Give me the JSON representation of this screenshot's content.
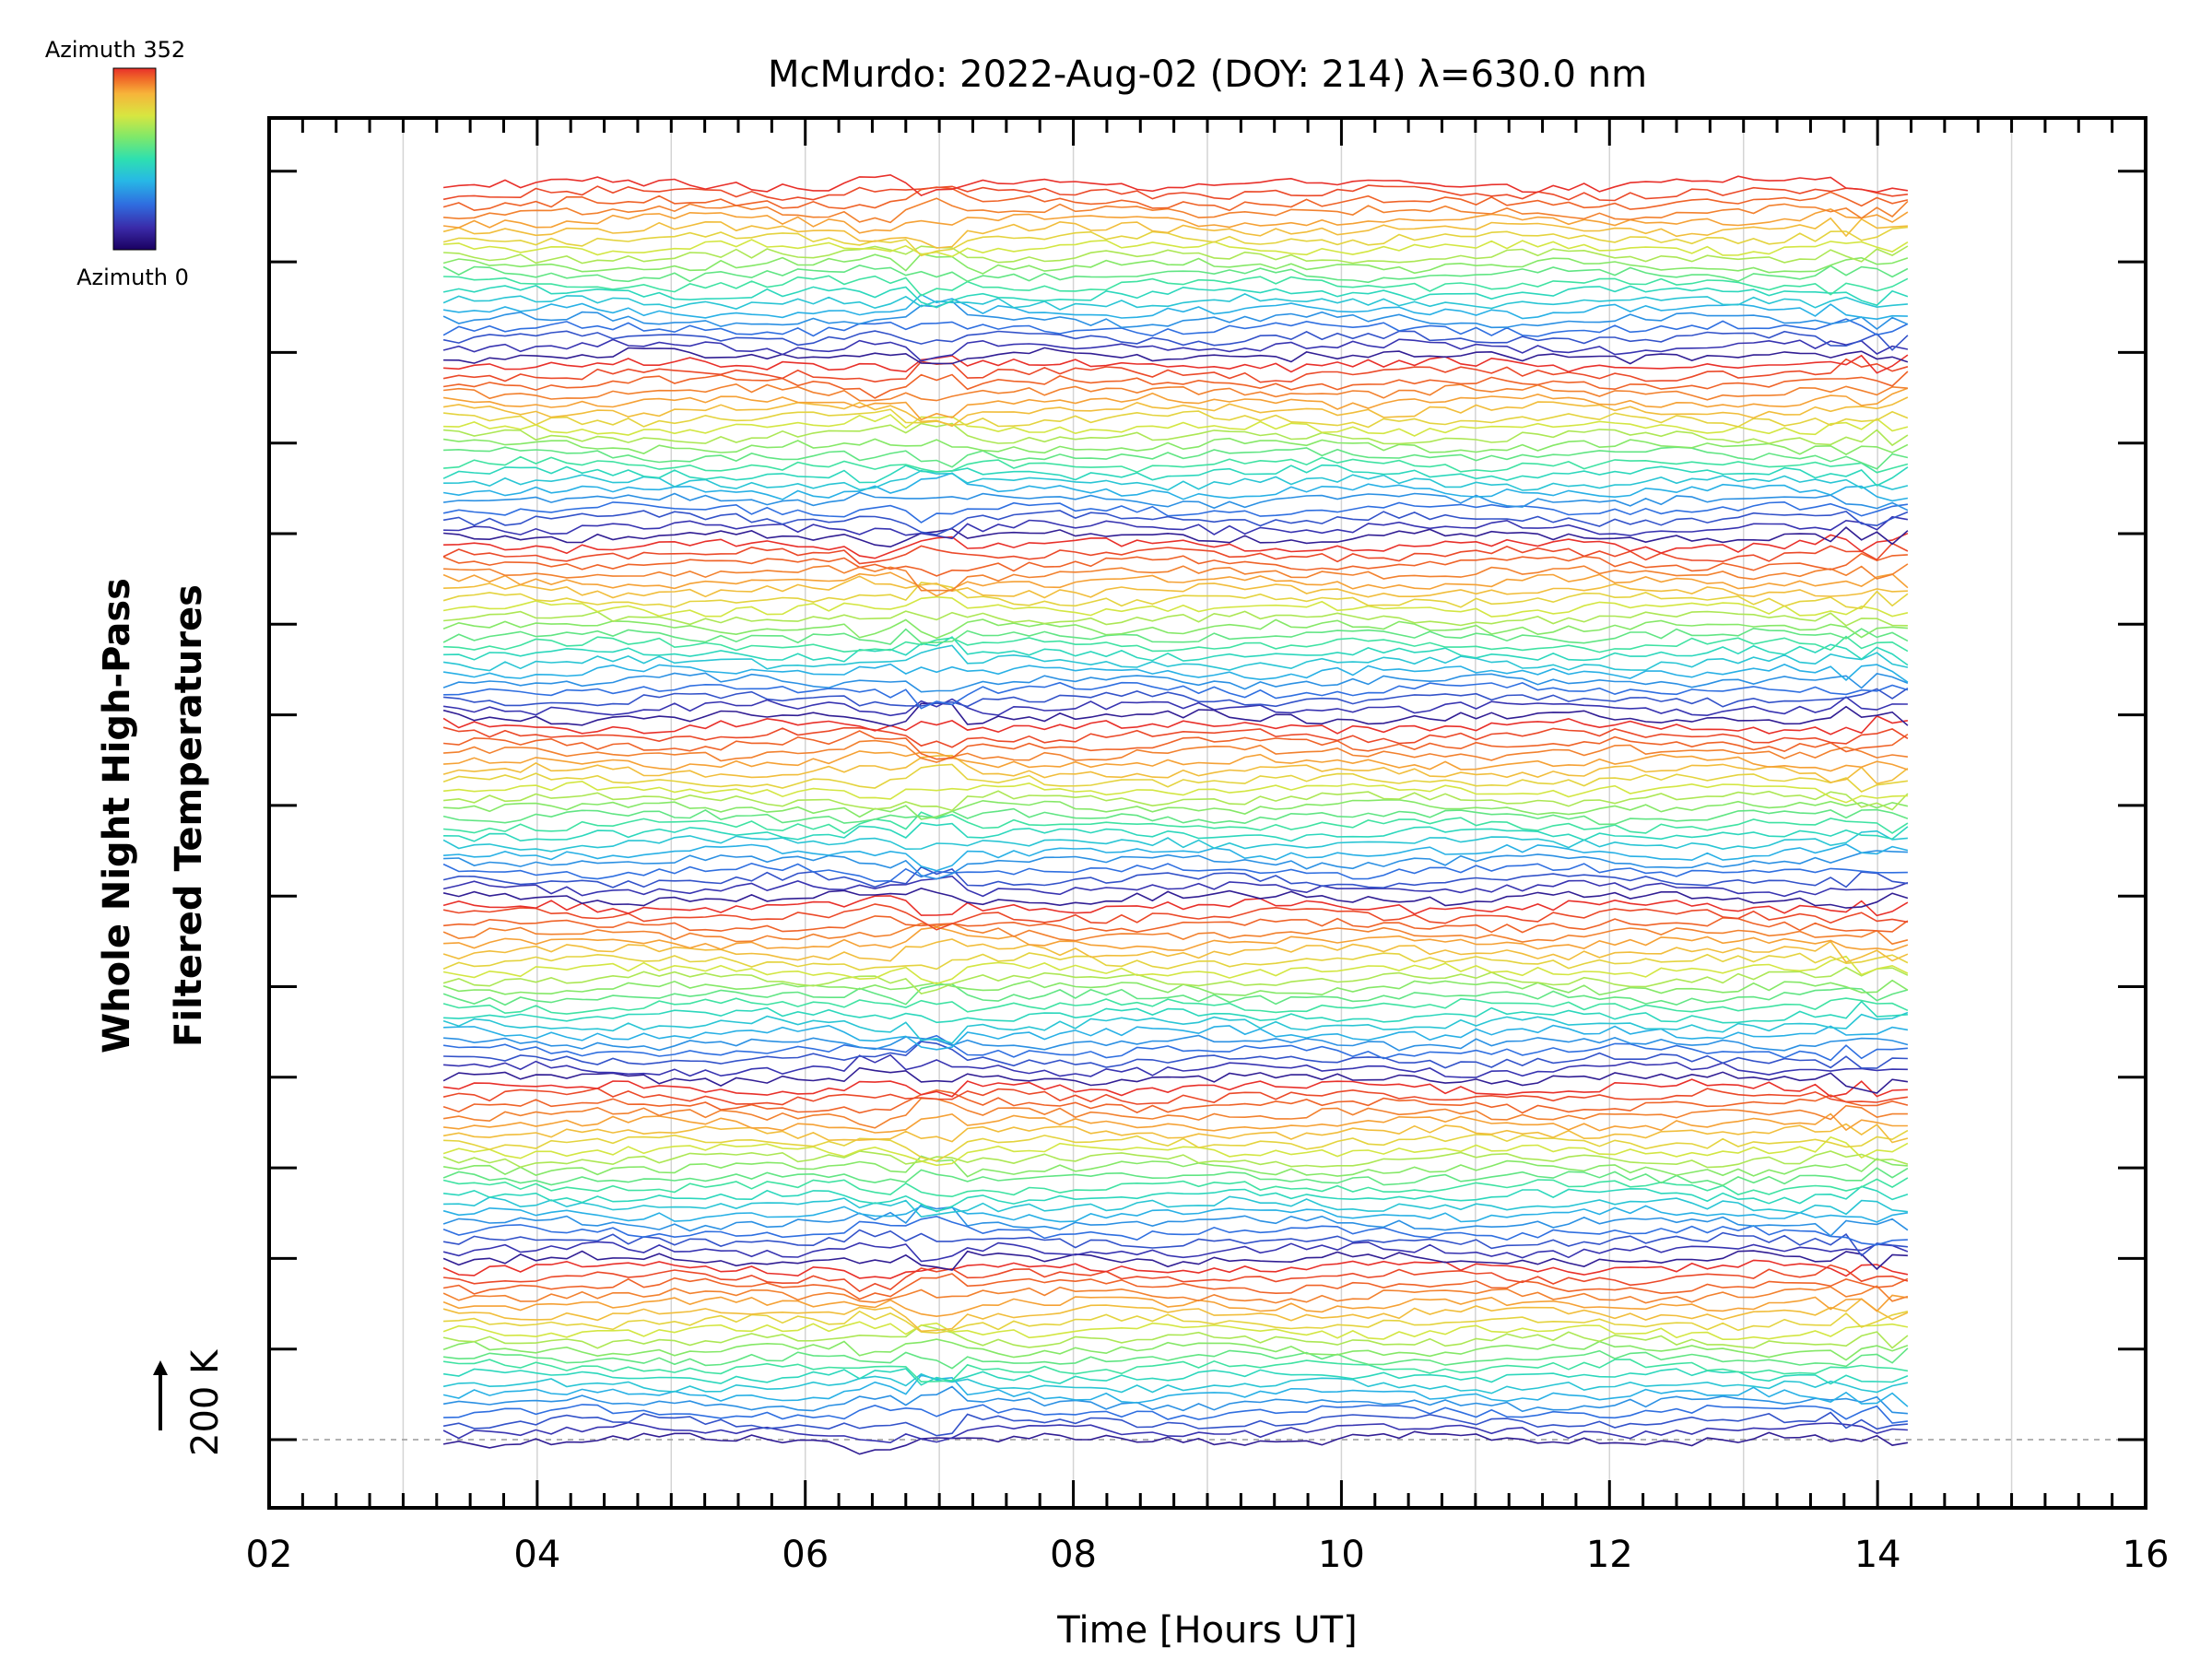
{
  "chart_data": {
    "type": "line",
    "title": "McMurdo: 2022-Aug-02 (DOY: 214) λ=630.0 nm",
    "xlabel": "Time [Hours UT]",
    "ylabel_lines": [
      "Whole Night High-Pass",
      "Filtered Temperatures"
    ],
    "y_scale_label": "200 K",
    "x_ticks": [
      "02",
      "04",
      "06",
      "08",
      "10",
      "12",
      "14",
      "16"
    ],
    "x_tick_values": [
      2,
      4,
      6,
      8,
      10,
      12,
      14,
      16
    ],
    "xlim": [
      2,
      16
    ],
    "time_range": [
      3.3,
      14.25
    ],
    "grid": true,
    "stacked_traces": 140,
    "colorbar": {
      "top_label": "Azimuth 352",
      "bottom_label": "Azimuth 0",
      "azimuth_range": [
        0,
        352
      ]
    },
    "colormap_stops": [
      "#1a0060",
      "#3a2aa8",
      "#2f6de0",
      "#27b8e6",
      "#2ee0b0",
      "#7ee86a",
      "#d8e640",
      "#f7b43a",
      "#f06a28",
      "#e8302a"
    ]
  }
}
